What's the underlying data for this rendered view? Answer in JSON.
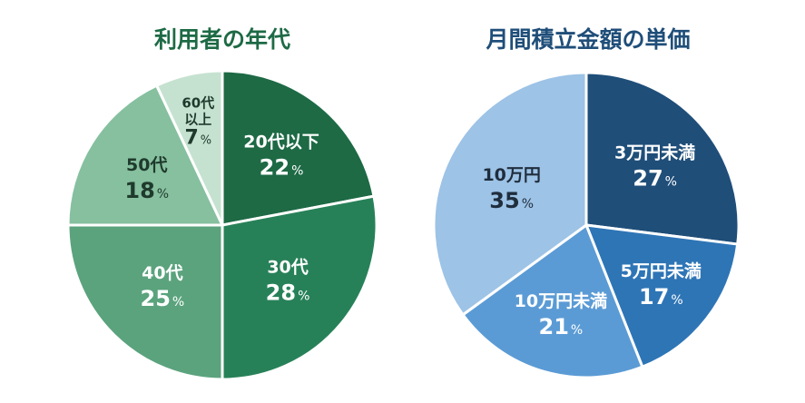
{
  "colors": {
    "left_title": "#1d6a45",
    "right_title": "#1f4e79",
    "separator": "#ffffff"
  },
  "chart_data": [
    {
      "type": "pie",
      "title": "利用者の年代",
      "start_angle_deg": 0,
      "direction": "clockwise",
      "slices": [
        {
          "name": "20代以下",
          "value": 22,
          "pct_label": "22%",
          "color": "#1d6a45",
          "text_color": "#ffffff"
        },
        {
          "name": "30代",
          "value": 28,
          "pct_label": "28%",
          "color": "#278158",
          "text_color": "#ffffff"
        },
        {
          "name": "40代",
          "value": 25,
          "pct_label": "25%",
          "color": "#5ba37d",
          "text_color": "#ffffff"
        },
        {
          "name": "50代",
          "value": 18,
          "pct_label": "18%",
          "color": "#86c09f",
          "text_color": "#1f3a2c"
        },
        {
          "name": "60代以上",
          "name_lines": [
            "60代",
            "以上"
          ],
          "value": 7,
          "pct_label": "7%",
          "color": "#c5e2d0",
          "text_color": "#1f3a2c"
        }
      ]
    },
    {
      "type": "pie",
      "title": "月間積立金額の単価",
      "start_angle_deg": 0,
      "direction": "clockwise",
      "slices": [
        {
          "name": "3万円未満",
          "value": 27,
          "pct_label": "27%",
          "color": "#1f4e79",
          "text_color": "#ffffff"
        },
        {
          "name": "5万円未満",
          "value": 17,
          "pct_label": "17%",
          "color": "#2e75b6",
          "text_color": "#ffffff"
        },
        {
          "name": "10万円未満",
          "value": 21,
          "pct_label": "21%",
          "color": "#5b9bd5",
          "text_color": "#ffffff"
        },
        {
          "name": "10万円",
          "value": 35,
          "pct_label": "35%",
          "color": "#9dc3e6",
          "text_color": "#1f2d3d"
        }
      ]
    }
  ]
}
